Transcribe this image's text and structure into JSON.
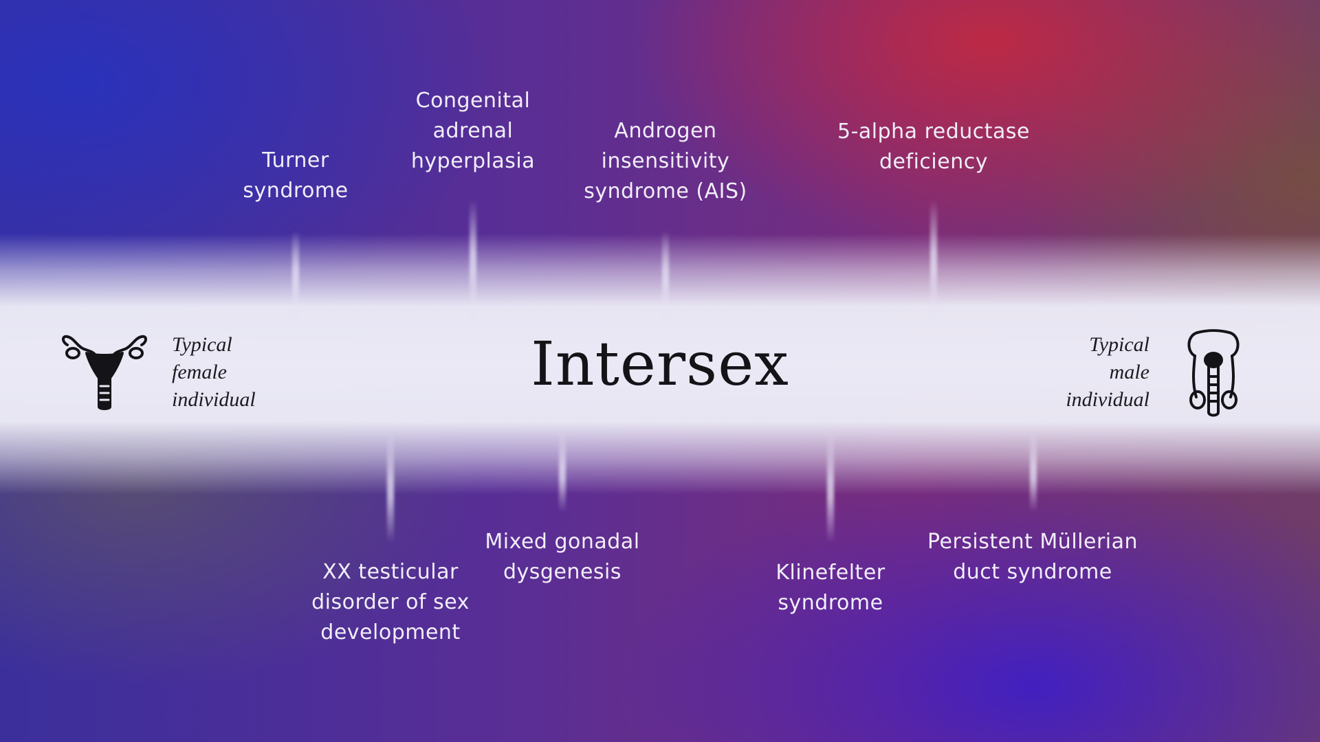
{
  "title": "Intersex",
  "left_end": {
    "line1": "Typical",
    "line2": "female",
    "line3": "individual",
    "icon": "uterus-icon"
  },
  "right_end": {
    "line1": "Typical",
    "line2": "male",
    "line3": "individual",
    "icon": "male-reproductive-icon"
  },
  "conditions_above": [
    {
      "lines": [
        "Turner",
        "syndrome"
      ]
    },
    {
      "lines": [
        "Congenital",
        "adrenal",
        "hyperplasia"
      ]
    },
    {
      "lines": [
        "Androgen",
        "insensitivity",
        "syndrome (AIS)"
      ]
    },
    {
      "lines": [
        "5-alpha reductase",
        "deficiency"
      ]
    }
  ],
  "conditions_below": [
    {
      "lines": [
        "XX testicular",
        "disorder of sex",
        "development"
      ]
    },
    {
      "lines": [
        "Mixed gonadal",
        "dysgenesis"
      ]
    },
    {
      "lines": [
        "Klinefelter",
        "syndrome"
      ]
    },
    {
      "lines": [
        "Persistent Müllerian",
        "duct syndrome"
      ]
    }
  ]
}
